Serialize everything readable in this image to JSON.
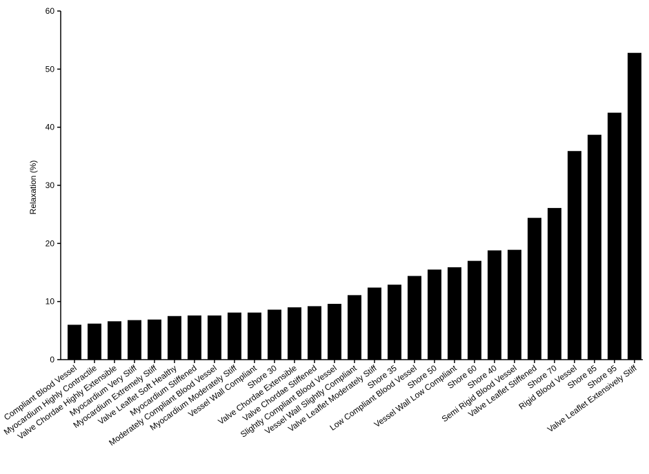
{
  "chart_data": {
    "type": "bar",
    "title": "",
    "xlabel": "",
    "ylabel": "Relaxation (%)",
    "ylim": [
      0,
      60
    ],
    "yticks": [
      0,
      10,
      20,
      30,
      40,
      50,
      60
    ],
    "grid": false,
    "bar_color": "#000000",
    "categories": [
      "Compliant Blood Vessel",
      "Myocardium Highly Contractile",
      "Valve Chordae Highly Extensible",
      "Myocardium Very Stiff",
      "Myocardium Extremely Stiff",
      "Valve Leaflet Soft Healthy",
      "Myocardium Stiffened",
      "Moderately Compliant Blood Vessel",
      "Myocardium Moderately Stiff",
      "Vessel Wall Compliant",
      "Shore 30",
      "Valve Chordae Extensible",
      "Valve Chordae Stiffened",
      "Slightly Compliant Blood Vessel",
      "Vessel Wall Slightly Compliant",
      "Valve Leaflet Moderately Stiff",
      "Shore 35",
      "Low Compliant Blood Vessel",
      "Shore 50",
      "Vessel Wall Low Compliant",
      "Shore 60",
      "Shore 40",
      "Semi Rigid Blood Vessel",
      "Valve Leaflet Stiffened",
      "Shore 70",
      "Rigid Blood Vessel",
      "Shore 85",
      "Shore 95",
      "Valve Leaflet Extensively Stiff"
    ],
    "values": [
      6.0,
      6.2,
      6.6,
      6.8,
      6.9,
      7.5,
      7.6,
      7.6,
      8.1,
      8.1,
      8.6,
      9.0,
      9.2,
      9.6,
      11.1,
      12.4,
      12.9,
      14.4,
      15.5,
      15.9,
      17.0,
      18.8,
      18.9,
      24.4,
      26.1,
      35.9,
      38.7,
      42.5,
      52.8
    ]
  }
}
